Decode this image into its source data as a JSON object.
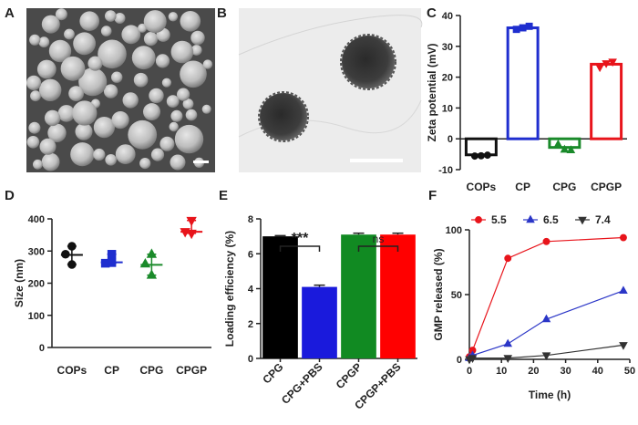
{
  "panels": {
    "A": {
      "label": "A"
    },
    "B": {
      "label": "B"
    },
    "C": {
      "label": "C"
    },
    "D": {
      "label": "D"
    },
    "E": {
      "label": "E"
    },
    "F": {
      "label": "F"
    }
  },
  "colors": {
    "COPs": "#111111",
    "CP": "#1f2ecf",
    "CPG": "#1a8a2a",
    "CPGP": "#e8141b"
  },
  "chart_data": [
    {
      "panel": "C",
      "type": "bar",
      "ylabel": "Zeta potential (mV)",
      "ylim": [
        -10,
        40
      ],
      "yticks": [
        -10,
        0,
        10,
        20,
        30,
        40
      ],
      "categories": [
        "COPs",
        "CP",
        "CPG",
        "CPGP"
      ],
      "values": [
        -5.2,
        36,
        -2.8,
        24.2
      ],
      "points": [
        [
          -5.6,
          -5.5,
          -5.3
        ],
        [
          35.5,
          36.0,
          36.5
        ],
        [
          -1.8,
          -3.5,
          -3.7
        ],
        [
          23.2,
          24.5,
          25.0
        ]
      ],
      "colors": [
        "#111111",
        "#1f2ecf",
        "#1a8a2a",
        "#e8141b"
      ],
      "markers": [
        "circle",
        "square",
        "triangle-up",
        "triangle-down"
      ]
    },
    {
      "panel": "D",
      "type": "scatter",
      "ylabel": "Size (nm)",
      "ylim": [
        0,
        400
      ],
      "yticks": [
        0,
        100,
        200,
        300,
        400
      ],
      "categories": [
        "COPs",
        "CP",
        "CPG",
        "CPGP"
      ],
      "means": [
        288,
        265,
        257,
        360
      ],
      "points": [
        [
          315,
          290,
          258
        ],
        [
          290,
          262,
          264
        ],
        [
          290,
          260,
          225
        ],
        [
          395,
          360,
          355
        ]
      ],
      "colors": [
        "#111111",
        "#1f2ecf",
        "#1a8a2a",
        "#e8141b"
      ],
      "markers": [
        "circle",
        "square",
        "triangle-up",
        "triangle-down"
      ]
    },
    {
      "panel": "E",
      "type": "bar",
      "ylabel": "Loading efficiency (%)",
      "ylim": [
        0,
        8
      ],
      "yticks": [
        0,
        2,
        4,
        6,
        8
      ],
      "categories": [
        "CPG",
        "CPG+PBS",
        "CPGP",
        "CPGP+PBS"
      ],
      "values": [
        7.0,
        4.1,
        7.1,
        7.1
      ],
      "errors": [
        0.04,
        0.1,
        0.08,
        0.08
      ],
      "colors": [
        "#000000",
        "#1a1adc",
        "#118a22",
        "#ff0000"
      ],
      "annotations": [
        "***",
        "ns"
      ]
    },
    {
      "panel": "F",
      "type": "line",
      "xlabel": "Time (h)",
      "ylabel": "GMP released (%)",
      "xlim": [
        0,
        50
      ],
      "ylim": [
        0,
        100
      ],
      "xticks": [
        0,
        10,
        20,
        30,
        40,
        50
      ],
      "yticks": [
        0,
        50,
        100
      ],
      "legend_placement": "top",
      "x": [
        0,
        1,
        12,
        24,
        48
      ],
      "series": [
        {
          "name": "5.5",
          "values": [
            2,
            7,
            78,
            91,
            94
          ],
          "color": "#e8141b",
          "marker": "circle"
        },
        {
          "name": "6.5",
          "values": [
            1,
            3,
            12,
            31,
            53
          ],
          "color": "#2b36c7",
          "marker": "triangle-up"
        },
        {
          "name": "7.4",
          "values": [
            0,
            1,
            1,
            3,
            11
          ],
          "color": "#333333",
          "marker": "triangle-down"
        }
      ]
    }
  ]
}
